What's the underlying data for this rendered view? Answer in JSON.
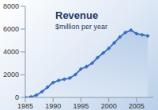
{
  "chart_data": {
    "type": "area",
    "title": "Revenue",
    "subtitle": "$million per year",
    "x": [
      1985,
      1986,
      1987,
      1988,
      1989,
      1990,
      1991,
      1992,
      1993,
      1994,
      1995,
      1996,
      1997,
      1998,
      1999,
      2000,
      2001,
      2002,
      2003,
      2004,
      2005,
      2006,
      2007
    ],
    "values": [
      0,
      50,
      200,
      500,
      900,
      1300,
      1500,
      1600,
      1700,
      2000,
      2500,
      2700,
      3000,
      3500,
      3900,
      4300,
      4800,
      5300,
      5700,
      5900,
      5600,
      5500,
      5400
    ],
    "color": "#3a6fbf",
    "marker": "diamond",
    "xlim": [
      1985,
      2008
    ],
    "xticks": [
      1985,
      1990,
      1995,
      2000,
      2005
    ],
    "ylim": [
      0,
      8000
    ],
    "yticks": [
      0,
      2000,
      4000,
      6000,
      8000
    ],
    "grid": false
  }
}
